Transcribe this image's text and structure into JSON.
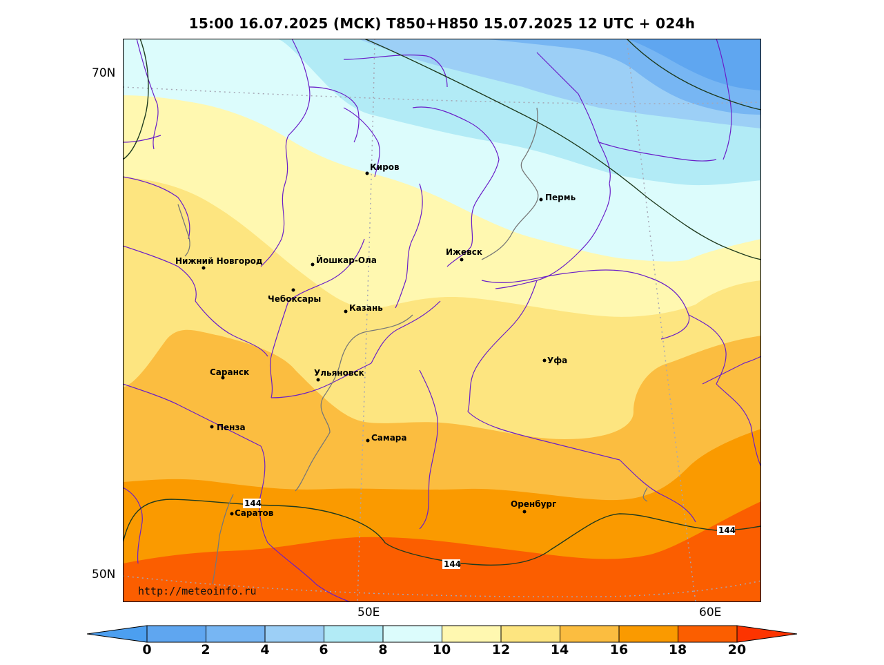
{
  "title": "15:00 16.07.2025 (MCK) T850+H850 15.07.2025 12 UTC + 024h",
  "lat_labels": [
    "70N",
    "50N"
  ],
  "lon_labels": [
    "50E",
    "60E"
  ],
  "credit": "http://meteoinfo.ru",
  "cities": [
    {
      "name": "Киров"
    },
    {
      "name": "Пермь"
    },
    {
      "name": "Нижний Новгород"
    },
    {
      "name": "Йошкар-Ола"
    },
    {
      "name": "Ижевск"
    },
    {
      "name": "Чебоксары"
    },
    {
      "name": "Казань"
    },
    {
      "name": "Уфа"
    },
    {
      "name": "Саранск"
    },
    {
      "name": "Ульяновск"
    },
    {
      "name": "Пенза"
    },
    {
      "name": "Самара"
    },
    {
      "name": "Оренбург"
    },
    {
      "name": "Саратов"
    }
  ],
  "isoline_labels": [
    "144",
    "144",
    "144"
  ],
  "colorbar": {
    "ticks": [
      "0",
      "2",
      "4",
      "6",
      "8",
      "10",
      "12",
      "14",
      "16",
      "18",
      "20"
    ],
    "colors": [
      "#4c9ff0",
      "#5fa6f0",
      "#77b6f3",
      "#9ccff6",
      "#b2ebf6",
      "#dcfcfc",
      "#fff8b0",
      "#fde580",
      "#fbbd40",
      "#fa9a00",
      "#fb5e00",
      "#fd3400"
    ]
  }
}
